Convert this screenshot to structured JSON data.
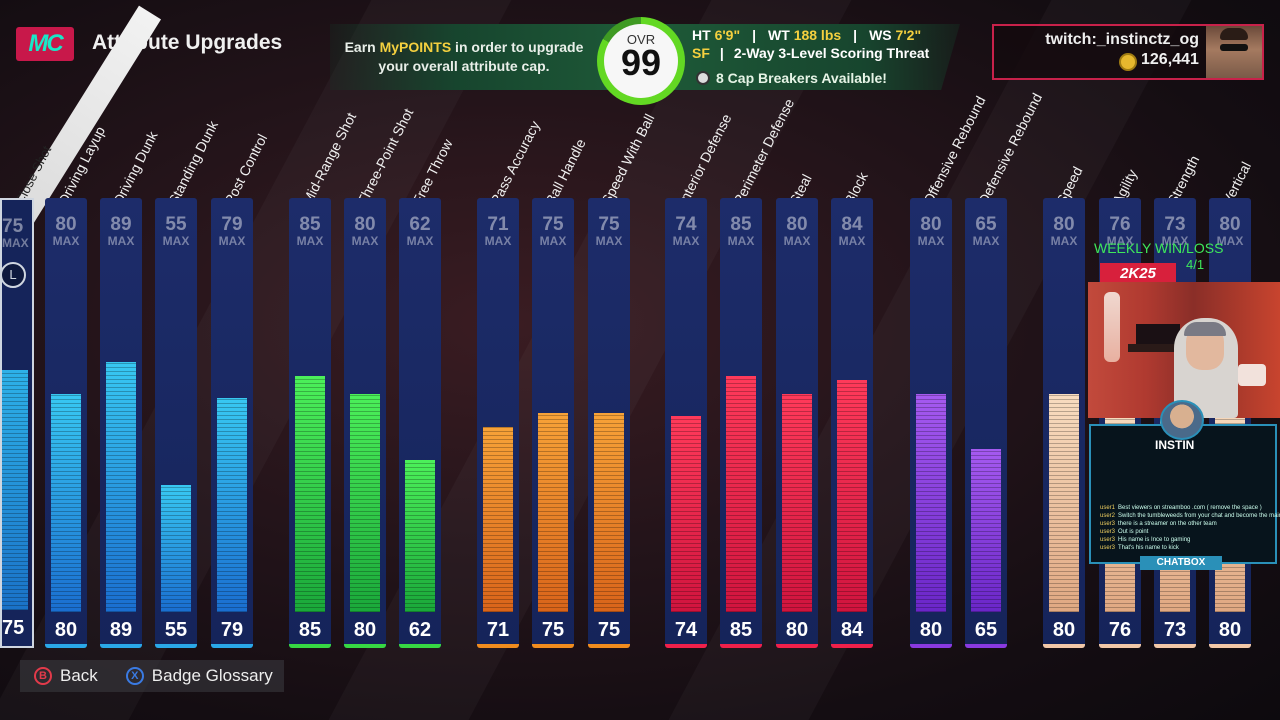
{
  "header": {
    "logo_text": "MC",
    "title": "Attribute Upgrades",
    "banner_prefix": "Earn ",
    "banner_highlight": "MyPOINTS",
    "banner_suffix": " in order to upgrade your overall attribute cap."
  },
  "player": {
    "ovr_label": "OVR",
    "ovr_value": "99",
    "ht_label": "HT",
    "ht_value": "6'9\"",
    "wt_label": "WT",
    "wt_value": "188 lbs",
    "ws_label": "WS",
    "ws_value": "7'2\"",
    "position": "SF",
    "archetype": "2-Way 3-Level Scoring Threat",
    "cap_breakers": "8 Cap Breakers Available!"
  },
  "user": {
    "name": "twitch:_instinctz_og",
    "vc": "126,441"
  },
  "colors": {
    "finishing": "#2aa8e8",
    "shooting": "#37d843",
    "playmaking": "#f08c1e",
    "defense": "#f0204a",
    "rebounding": "#8a3ae0",
    "physicals": "#f2c8a8",
    "accent": "#c8214a"
  },
  "partial_attribute": {
    "label": "Close Shot",
    "cap": "75",
    "max_label": "MAX",
    "value": "75"
  },
  "attributes": [
    {
      "label": "Driving Layup",
      "cap": "80",
      "value": 80,
      "group": "finishing"
    },
    {
      "label": "Driving Dunk",
      "cap": "89",
      "value": 89,
      "group": "finishing"
    },
    {
      "label": "Standing Dunk",
      "cap": "55",
      "value": 55,
      "group": "finishing"
    },
    {
      "label": "Post Control",
      "cap": "79",
      "value": 79,
      "group": "finishing"
    },
    {
      "label": "Mid-Range Shot",
      "cap": "85",
      "value": 85,
      "group": "shooting"
    },
    {
      "label": "Three-Point Shot",
      "cap": "80",
      "value": 80,
      "group": "shooting"
    },
    {
      "label": "Free Throw",
      "cap": "62",
      "value": 62,
      "group": "shooting"
    },
    {
      "label": "Pass Accuracy",
      "cap": "71",
      "value": 71,
      "group": "playmaking"
    },
    {
      "label": "Ball Handle",
      "cap": "75",
      "value": 75,
      "group": "playmaking"
    },
    {
      "label": "Speed With Ball",
      "cap": "75",
      "value": 75,
      "group": "playmaking"
    },
    {
      "label": "Interior Defense",
      "cap": "74",
      "value": 74,
      "group": "defense"
    },
    {
      "label": "Perimeter Defense",
      "cap": "85",
      "value": 85,
      "group": "defense"
    },
    {
      "label": "Steal",
      "cap": "80",
      "value": 80,
      "group": "defense"
    },
    {
      "label": "Block",
      "cap": "84",
      "value": 84,
      "group": "defense"
    },
    {
      "label": "Offensive Rebound",
      "cap": "80",
      "value": 80,
      "group": "rebounding"
    },
    {
      "label": "Defensive Rebound",
      "cap": "65",
      "value": 65,
      "group": "rebounding"
    },
    {
      "label": "Speed",
      "cap": "80",
      "value": 80,
      "group": "physicals"
    },
    {
      "label": "Agility",
      "cap": "76",
      "value": 76,
      "group": "physicals"
    },
    {
      "label": "Strength",
      "cap": "73",
      "value": 73,
      "group": "physicals"
    },
    {
      "label": "Vertical",
      "cap": "80",
      "value": 80,
      "group": "physicals"
    }
  ],
  "max_label": "MAX",
  "footer": {
    "back_label": "Back",
    "glossary_label": "Badge Glossary",
    "back_key": "B",
    "glossary_key": "X"
  },
  "stream": {
    "weekly_label": "WEEKLY WIN/LOSS",
    "weekly_score": "4/1",
    "brand": "2K25",
    "chat_tag": "INSTIN",
    "chatbox_label": "CHATBOX",
    "chat_lines": [
      {
        "user": "user1",
        "text": "Best viewers on streamboo .com ( remove the space )"
      },
      {
        "user": "user2",
        "text": "Switch the tumbleweeds from your chat and become the main event"
      },
      {
        "user": "user3",
        "text": "there is a streamer on the other team"
      },
      {
        "user": "user3",
        "text": "Out is point"
      },
      {
        "user": "user3",
        "text": "His name is Ince to gaming"
      },
      {
        "user": "user3",
        "text": "That's his name to kick"
      }
    ]
  }
}
